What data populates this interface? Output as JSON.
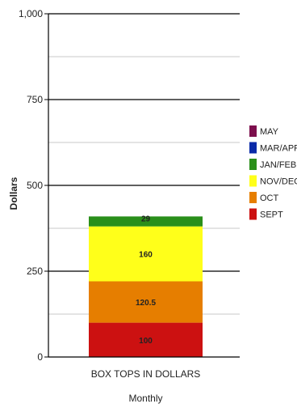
{
  "chart_data": {
    "type": "bar",
    "stacked": true,
    "categories": [
      "BOX TOPS IN DOLLARS"
    ],
    "series": [
      {
        "name": "SEPT",
        "values": [
          100
        ],
        "color": "#cc1111",
        "label": "100"
      },
      {
        "name": "OCT",
        "values": [
          120.5
        ],
        "color": "#e67e00",
        "label": "120.5"
      },
      {
        "name": "NOV/DEC",
        "values": [
          160
        ],
        "color": "#ffff1a",
        "label": "160"
      },
      {
        "name": "JAN/FEB",
        "values": [
          29
        ],
        "color": "#2a8f1a",
        "label": "29"
      },
      {
        "name": "MAR/APR",
        "values": [
          0
        ],
        "color": "#0a2aa8",
        "label": ""
      },
      {
        "name": "MAY",
        "values": [
          0
        ],
        "color": "#7d0f4d",
        "label": ""
      }
    ],
    "legend": [
      "MAY",
      "MAR/APR",
      "JAN/FEB",
      "NOV/DEC",
      "OCT",
      "SEPT"
    ],
    "legend_position": "right",
    "xlabel": "Monthly",
    "ylabel": "Dollars",
    "ylim": [
      0,
      1000
    ],
    "yticks": [
      0,
      250,
      500,
      750,
      1000
    ],
    "ytick_labels": [
      "0",
      "250",
      "500",
      "750",
      "1,000"
    ],
    "grid": true,
    "major_gridlines": [
      250,
      500,
      750,
      1000
    ],
    "minor_gridlines": [
      125,
      375,
      625,
      875
    ]
  }
}
